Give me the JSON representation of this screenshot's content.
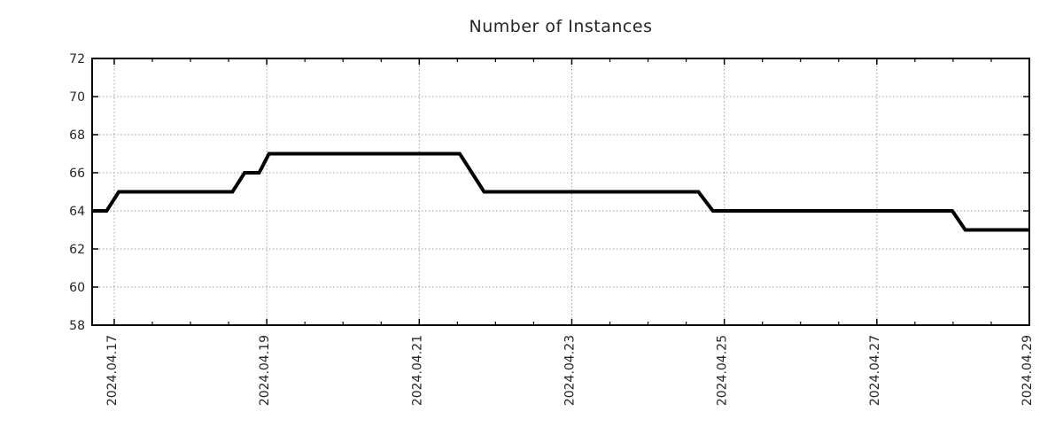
{
  "chart_data": {
    "type": "line",
    "subtype": "step",
    "title": "Number of Instances",
    "xlabel": "",
    "ylabel": "",
    "ylim": [
      58,
      72
    ],
    "y_ticks": [
      58,
      60,
      62,
      64,
      66,
      68,
      70,
      72
    ],
    "x_domain_days": [
      16.71,
      29.0
    ],
    "x_ticks": [
      {
        "day": 17,
        "label": "2024.04.17"
      },
      {
        "day": 19,
        "label": "2024.04.19"
      },
      {
        "day": 21,
        "label": "2024.04.21"
      },
      {
        "day": 23,
        "label": "2024.04.23"
      },
      {
        "day": 25,
        "label": "2024.04.25"
      },
      {
        "day": 27,
        "label": "2024.04.27"
      },
      {
        "day": 29,
        "label": "2024.04.29"
      }
    ],
    "x_minor_tick_step_days": 0.5,
    "grid": {
      "style": "dotted",
      "at": "major-ticks"
    },
    "legend_position": "none",
    "series": [
      {
        "name": "Number of Instances",
        "color": "#000000",
        "points_day_value": [
          [
            16.71,
            64
          ],
          [
            16.9,
            64
          ],
          [
            17.06,
            65
          ],
          [
            18.55,
            65
          ],
          [
            18.71,
            66
          ],
          [
            18.9,
            66
          ],
          [
            19.03,
            67
          ],
          [
            21.53,
            67
          ],
          [
            21.85,
            65
          ],
          [
            24.66,
            65
          ],
          [
            24.85,
            64
          ],
          [
            27.99,
            64
          ],
          [
            28.16,
            63
          ],
          [
            29.0,
            63
          ]
        ]
      }
    ],
    "colors": {
      "line": "#000000",
      "axis": "#000000",
      "grid": "#9b9b9b",
      "text": "#262626",
      "background": "#ffffff"
    }
  }
}
